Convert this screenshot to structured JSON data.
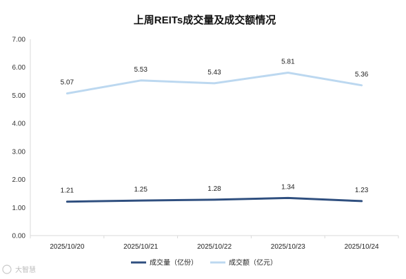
{
  "chart_data": {
    "type": "line",
    "title": "上周REITs成交量及成交额情况",
    "categories": [
      "2025/10/20",
      "2025/10/21",
      "2025/10/22",
      "2025/10/23",
      "2025/10/24"
    ],
    "series": [
      {
        "name": "成交量（亿份）",
        "values": [
          1.21,
          1.25,
          1.28,
          1.34,
          1.23
        ],
        "labels": [
          "1.21",
          "1.25",
          "1.28",
          "1.34",
          "1.23"
        ],
        "color": "#2f4f7f"
      },
      {
        "name": "成交额（亿元）",
        "values": [
          5.07,
          5.53,
          5.43,
          5.81,
          5.36
        ],
        "labels": [
          "5.07",
          "5.53",
          "5.43",
          "5.81",
          "5.36"
        ],
        "color": "#bcd8f0"
      }
    ],
    "y_ticks": [
      "0.00",
      "1.00",
      "2.00",
      "3.00",
      "4.00",
      "5.00",
      "6.00",
      "7.00"
    ],
    "ylim": [
      0,
      7
    ],
    "xlabel": "",
    "ylabel": "",
    "grid": false,
    "legend_position": "bottom"
  },
  "watermark": "大智慧"
}
